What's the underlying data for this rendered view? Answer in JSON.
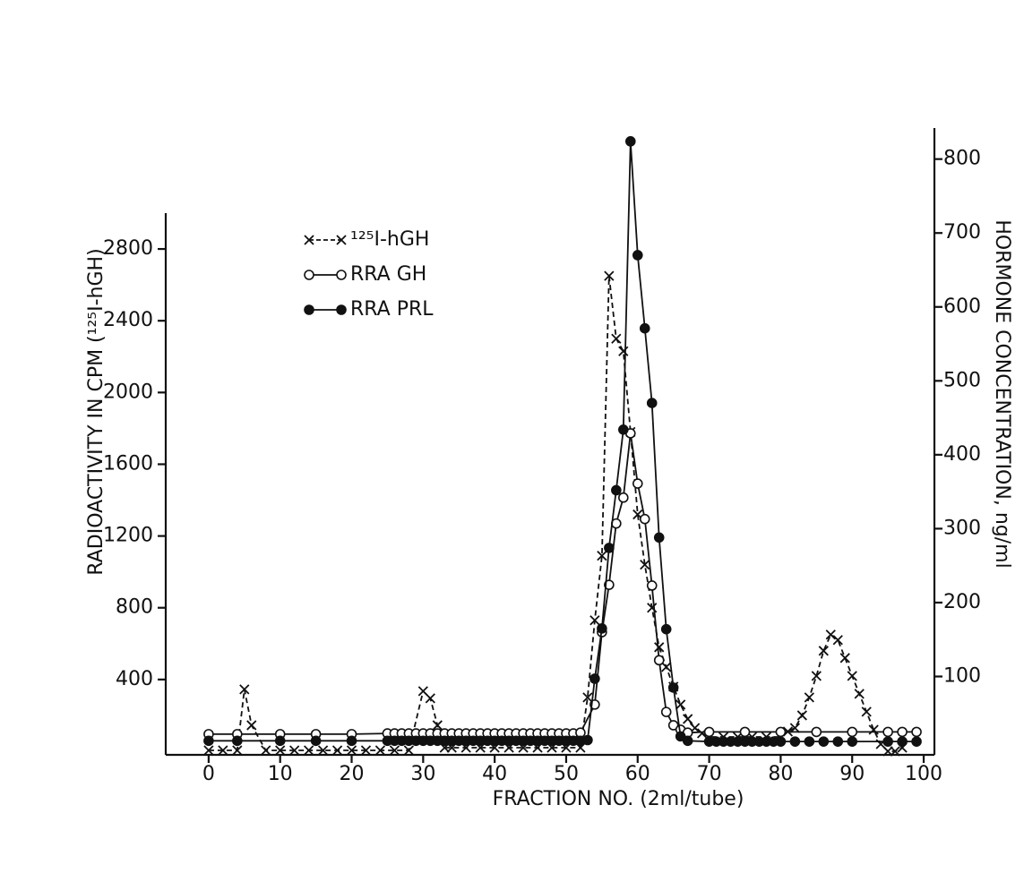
{
  "chart_data": {
    "type": "line",
    "xlabel": "FRACTION NO. (2ml/tube)",
    "ylabel": "RADIOACTIVITY IN CPM (¹²⁵I-hGH)",
    "y2label": "HORMONE CONCENTRATION, ng/ml",
    "xlim": [
      -6,
      101.5
    ],
    "xticks": [
      0,
      10,
      20,
      30,
      40,
      50,
      60,
      70,
      80,
      90,
      100
    ],
    "ylim": [
      -20,
      3000
    ],
    "yticks": [
      400,
      800,
      1200,
      1600,
      2000,
      2400,
      2800
    ],
    "y2lim": [
      -6,
      842
    ],
    "y2ticks": [
      100,
      200,
      300,
      400,
      500,
      600,
      700,
      800
    ],
    "legend": "upper left",
    "series": [
      {
        "name": "¹²⁵I-hGH",
        "color": "#111111",
        "marker": "x",
        "linestyle": "dashed",
        "x": [
          0,
          2,
          4,
          5,
          6,
          8,
          10,
          12,
          14,
          16,
          18,
          20,
          22,
          24,
          26,
          28,
          30,
          31,
          32,
          33,
          34,
          36,
          38,
          40,
          42,
          44,
          46,
          48,
          50,
          52,
          53,
          54,
          55,
          56,
          57,
          58,
          59,
          60,
          61,
          62,
          63,
          64,
          65,
          66,
          67,
          68,
          69,
          70,
          72,
          74,
          76,
          78,
          80,
          81,
          82,
          83,
          84,
          85,
          86,
          87,
          88,
          89,
          90,
          91,
          92,
          93,
          94,
          95,
          96,
          97
        ],
        "values": [
          5,
          5,
          5,
          345,
          145,
          5,
          5,
          5,
          5,
          5,
          5,
          5,
          5,
          5,
          5,
          5,
          335,
          295,
          145,
          20,
          20,
          20,
          20,
          20,
          20,
          20,
          20,
          20,
          20,
          20,
          300,
          730,
          1090,
          2650,
          2300,
          2230,
          1780,
          1320,
          1040,
          800,
          580,
          470,
          360,
          260,
          180,
          130,
          100,
          80,
          80,
          80,
          80,
          80,
          80,
          110,
          130,
          200,
          300,
          420,
          560,
          650,
          620,
          520,
          420,
          320,
          220,
          120,
          40,
          0,
          0,
          20
        ]
      },
      {
        "name": "RRA GH",
        "color": "#111111",
        "marker": "open",
        "linestyle": "solid",
        "axis": "y2",
        "x": [
          0,
          4,
          10,
          15,
          20,
          25,
          26,
          27,
          28,
          29,
          30,
          31,
          32,
          33,
          34,
          35,
          36,
          37,
          38,
          39,
          40,
          41,
          42,
          43,
          44,
          45,
          46,
          47,
          48,
          49,
          50,
          51,
          52,
          54,
          55,
          56,
          57,
          58,
          59,
          60,
          61,
          62,
          63,
          64,
          65,
          66,
          67,
          70,
          75,
          80,
          85,
          90,
          95,
          97,
          99
        ],
        "values": [
          22,
          22,
          22,
          22,
          22,
          23,
          23,
          23,
          23,
          23,
          23,
          23,
          23,
          23,
          23,
          23,
          23,
          23,
          23,
          23,
          23,
          23,
          23,
          23,
          23,
          23,
          23,
          23,
          23,
          23,
          23,
          23,
          24,
          62,
          160,
          224,
          307,
          342,
          429,
          361,
          313,
          223,
          122,
          52,
          34,
          28,
          24,
          25,
          25,
          25,
          25,
          25,
          25,
          25,
          25
        ]
      },
      {
        "name": "RRA PRL",
        "color": "#111111",
        "marker": "filled",
        "linestyle": "solid",
        "axis": "y2",
        "x": [
          0,
          4,
          10,
          15,
          20,
          25,
          26,
          27,
          28,
          29,
          30,
          31,
          32,
          33,
          34,
          35,
          36,
          37,
          38,
          39,
          40,
          41,
          42,
          43,
          44,
          45,
          46,
          47,
          48,
          49,
          50,
          51,
          52,
          53,
          54,
          55,
          56,
          57,
          58,
          59,
          60,
          61,
          62,
          63,
          64,
          65,
          66,
          67,
          70,
          71,
          72,
          73,
          74,
          75,
          76,
          77,
          78,
          79,
          80,
          82,
          84,
          86,
          88,
          90,
          95,
          97,
          99
        ],
        "values": [
          13,
          13,
          13,
          13,
          13,
          13,
          13,
          13,
          13,
          13,
          13,
          13,
          13,
          13,
          13,
          13,
          13,
          13,
          13,
          13,
          13,
          13,
          13,
          13,
          13,
          13,
          13,
          13,
          13,
          13,
          13,
          13,
          13,
          14,
          97,
          165,
          274,
          352,
          434,
          824,
          670,
          571,
          470,
          288,
          164,
          85,
          19,
          13,
          12,
          12,
          12,
          12,
          12,
          12,
          12,
          12,
          12,
          12,
          12,
          12,
          12,
          12,
          12,
          12,
          12,
          12,
          12
        ]
      }
    ]
  }
}
